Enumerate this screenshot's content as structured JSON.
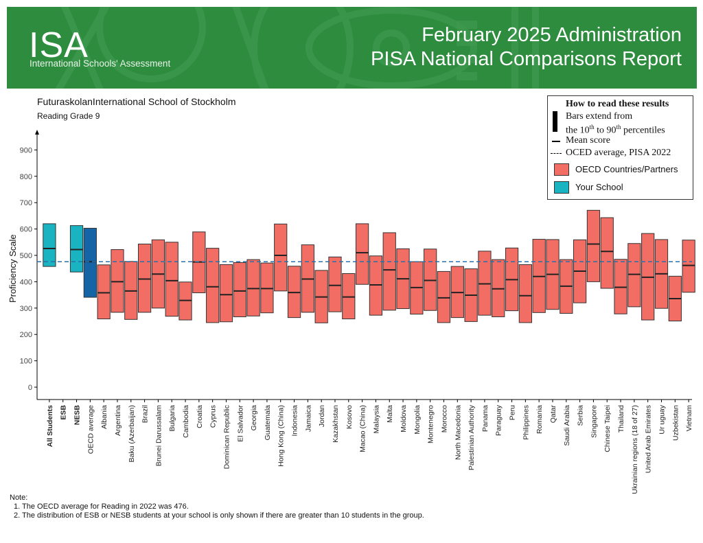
{
  "header": {
    "logo": "ISA",
    "logo_subtitle": "International Schools' Assessment",
    "title_line1": "February 2025 Administration",
    "title_line2": "PISA National Comparisons Report",
    "banner_color": "#2e8c3f"
  },
  "school_name": "FuturaskolanInternational School of Stockholm",
  "subject": "Reading Grade 9",
  "legend": {
    "title": "How to read these results",
    "bar_line1": "Bars extend from",
    "bar_line2_pre": "the 10",
    "bar_line2_sup1": "th",
    "bar_line2_mid": " to 90",
    "bar_line2_sup2": "th",
    "bar_line2_post": " percentiles",
    "mean": "Mean score",
    "average": "OCED average, PISA 2022",
    "oecd": "OECD Countries/Partners",
    "school": "Your School"
  },
  "chart_data": {
    "type": "bar",
    "ylabel": "Proficiency Scale",
    "ylim": [
      0,
      950
    ],
    "yticks": [
      0,
      100,
      200,
      300,
      400,
      500,
      600,
      700,
      800,
      900
    ],
    "reference_line": 476,
    "colors": {
      "oecd": "#f26d64",
      "school": "#19b3c2",
      "school_dark": "#1565a6",
      "reference": "#2a6fa8"
    },
    "categories": [
      {
        "label": "All Students",
        "bold": true,
        "group": "school",
        "p10": 458,
        "mean": 526,
        "p90": 620
      },
      {
        "label": "ESB",
        "bold": true,
        "group": "none"
      },
      {
        "label": "NESB",
        "bold": true,
        "group": "school",
        "p10": 437,
        "mean": 522,
        "p90": 613
      },
      {
        "label": "OECD average",
        "group": "school_dark",
        "p10": 341,
        "mean": 476,
        "p90": 603
      },
      {
        "label": "Albania",
        "group": "oecd",
        "p10": 259,
        "mean": 358,
        "p90": 464
      },
      {
        "label": "Argentina",
        "group": "oecd",
        "p10": 284,
        "mean": 400,
        "p90": 522
      },
      {
        "label": "Baku (Azerbaijan)",
        "group": "oecd",
        "p10": 257,
        "mean": 365,
        "p90": 477
      },
      {
        "label": "Brazil",
        "group": "oecd",
        "p10": 284,
        "mean": 410,
        "p90": 543
      },
      {
        "label": "Brunei Darussalam",
        "group": "oecd",
        "p10": 300,
        "mean": 429,
        "p90": 559
      },
      {
        "label": "Bulgaria",
        "group": "oecd",
        "p10": 269,
        "mean": 404,
        "p90": 550
      },
      {
        "label": "Cambodia",
        "group": "oecd",
        "p10": 255,
        "mean": 329,
        "p90": 399
      },
      {
        "label": "Croatia",
        "group": "oecd",
        "p10": 358,
        "mean": 475,
        "p90": 589
      },
      {
        "label": "Cyprus",
        "group": "oecd",
        "p10": 245,
        "mean": 381,
        "p90": 527
      },
      {
        "label": "Dominican Republic",
        "group": "oecd",
        "p10": 248,
        "mean": 351,
        "p90": 465
      },
      {
        "label": "El Salvador",
        "group": "oecd",
        "p10": 267,
        "mean": 365,
        "p90": 473
      },
      {
        "label": "Georgia",
        "group": "oecd",
        "p10": 270,
        "mean": 374,
        "p90": 484
      },
      {
        "label": "Guatemala",
        "group": "oecd",
        "p10": 282,
        "mean": 374,
        "p90": 471
      },
      {
        "label": "Hong Kong (China)",
        "group": "oecd",
        "p10": 365,
        "mean": 500,
        "p90": 619
      },
      {
        "label": "Indonesia",
        "group": "oecd",
        "p10": 264,
        "mean": 359,
        "p90": 459
      },
      {
        "label": "Jamaica",
        "group": "oecd",
        "p10": 284,
        "mean": 410,
        "p90": 540
      },
      {
        "label": "Jordan",
        "group": "oecd",
        "p10": 244,
        "mean": 342,
        "p90": 443
      },
      {
        "label": "Kazakhstan",
        "group": "oecd",
        "p10": 286,
        "mean": 386,
        "p90": 494
      },
      {
        "label": "Kosovo",
        "group": "oecd",
        "p10": 259,
        "mean": 342,
        "p90": 431
      },
      {
        "label": "Macao (China)",
        "group": "oecd",
        "p10": 390,
        "mean": 510,
        "p90": 620
      },
      {
        "label": "Malaysia",
        "group": "oecd",
        "p10": 273,
        "mean": 388,
        "p90": 498
      },
      {
        "label": "Malta",
        "group": "oecd",
        "p10": 292,
        "mean": 445,
        "p90": 586
      },
      {
        "label": "Moldova",
        "group": "oecd",
        "p10": 298,
        "mean": 411,
        "p90": 525
      },
      {
        "label": "Mongolia",
        "group": "oecd",
        "p10": 277,
        "mean": 378,
        "p90": 476
      },
      {
        "label": "Montenegro",
        "group": "oecd",
        "p10": 291,
        "mean": 405,
        "p90": 524
      },
      {
        "label": "Morocco",
        "group": "oecd",
        "p10": 245,
        "mean": 339,
        "p90": 439
      },
      {
        "label": "North Macedonia",
        "group": "oecd",
        "p10": 264,
        "mean": 359,
        "p90": 458
      },
      {
        "label": "Palestinian Authority",
        "group": "oecd",
        "p10": 249,
        "mean": 349,
        "p90": 449
      },
      {
        "label": "Panama",
        "group": "oecd",
        "p10": 273,
        "mean": 392,
        "p90": 516
      },
      {
        "label": "Paraguay",
        "group": "oecd",
        "p10": 267,
        "mean": 373,
        "p90": 484
      },
      {
        "label": "Peru",
        "group": "oecd",
        "p10": 290,
        "mean": 408,
        "p90": 528
      },
      {
        "label": "Philippines",
        "group": "oecd",
        "p10": 245,
        "mean": 347,
        "p90": 465
      },
      {
        "label": "Romania",
        "group": "oecd",
        "p10": 283,
        "mean": 420,
        "p90": 561
      },
      {
        "label": "Qatar",
        "group": "oecd",
        "p10": 295,
        "mean": 428,
        "p90": 560
      },
      {
        "label": "Saudi Arabia",
        "group": "oecd",
        "p10": 280,
        "mean": 383,
        "p90": 484
      },
      {
        "label": "Serbia",
        "group": "oecd",
        "p10": 320,
        "mean": 440,
        "p90": 559
      },
      {
        "label": "Singapore",
        "group": "oecd",
        "p10": 400,
        "mean": 543,
        "p90": 671
      },
      {
        "label": "Chinese Taipei",
        "group": "oecd",
        "p10": 375,
        "mean": 515,
        "p90": 643
      },
      {
        "label": "Thailand",
        "group": "oecd",
        "p10": 278,
        "mean": 379,
        "p90": 485
      },
      {
        "label": "Ukrainian regions (18 of 27)",
        "group": "oecd",
        "p10": 305,
        "mean": 428,
        "p90": 545
      },
      {
        "label": "United Arab Emirates",
        "group": "oecd",
        "p10": 255,
        "mean": 417,
        "p90": 583
      },
      {
        "label": "Ur uguay",
        "group": "oecd",
        "p10": 299,
        "mean": 430,
        "p90": 560
      },
      {
        "label": "Uzbekistan",
        "group": "oecd",
        "p10": 251,
        "mean": 336,
        "p90": 421
      },
      {
        "label": "Vietnam",
        "group": "oecd",
        "p10": 360,
        "mean": 462,
        "p90": 558
      }
    ]
  },
  "notes": {
    "heading": "Note:",
    "items": [
      "1. The OECD average for Reading in 2022 was 476.",
      "2. The distribution of ESB or NESB students at your school is only shown if there are greater than 10 students in the group."
    ]
  }
}
